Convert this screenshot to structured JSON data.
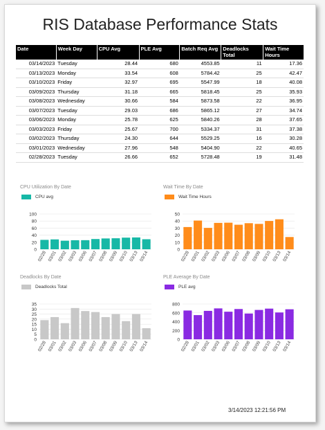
{
  "title": "RIS Database Performance Stats",
  "table": {
    "headers": [
      "Date",
      "Week Day",
      "CPU Avg",
      "PLE Avg",
      "Batch Req Avg",
      "Deadlocks Total",
      "Wait Time Hours"
    ],
    "rows": [
      [
        "03/14/2023",
        "Tuesday",
        "28.44",
        "680",
        "4553.85",
        "11",
        "17.36"
      ],
      [
        "03/13/2023",
        "Monday",
        "33.54",
        "608",
        "5784.42",
        "25",
        "42.47"
      ],
      [
        "03/10/2023",
        "Friday",
        "32.97",
        "695",
        "5547.99",
        "18",
        "40.08"
      ],
      [
        "03/09/2023",
        "Thursday",
        "31.18",
        "665",
        "5818.45",
        "25",
        "35.93"
      ],
      [
        "03/08/2023",
        "Wednesday",
        "30.66",
        "584",
        "5873.58",
        "22",
        "36.95"
      ],
      [
        "03/07/2023",
        "Tuesday",
        "29.03",
        "686",
        "5865.12",
        "27",
        "34.74"
      ],
      [
        "03/06/2023",
        "Monday",
        "25.78",
        "625",
        "5840.26",
        "28",
        "37.65"
      ],
      [
        "03/03/2023",
        "Friday",
        "25.67",
        "700",
        "5334.37",
        "31",
        "37.38"
      ],
      [
        "03/02/2023",
        "Thursday",
        "24.30",
        "644",
        "5529.25",
        "16",
        "30.28"
      ],
      [
        "03/01/2023",
        "Wednesday",
        "27.96",
        "548",
        "5404.90",
        "22",
        "40.65"
      ],
      [
        "02/28/2023",
        "Tuesday",
        "26.66",
        "652",
        "5728.48",
        "19",
        "31.48"
      ]
    ]
  },
  "chart_data": [
    {
      "type": "bar",
      "title": "CPU Utilization By Date",
      "series": [
        {
          "name": "CPU avg",
          "values": [
            26.66,
            27.96,
            24.3,
            25.67,
            25.78,
            29.03,
            30.66,
            31.18,
            32.97,
            33.54,
            28.44
          ]
        }
      ],
      "categories": [
        "02/28",
        "03/01",
        "03/02",
        "03/03",
        "03/06",
        "03/07",
        "03/08",
        "03/09",
        "03/10",
        "03/13",
        "03/14"
      ],
      "yticks": [
        0,
        20,
        40,
        60,
        80,
        100
      ],
      "ylim": [
        0,
        100
      ],
      "color": "#17b8a6",
      "legend": "top-left"
    },
    {
      "type": "bar",
      "title": "Wait Time By Date",
      "series": [
        {
          "name": "Wait Time Hours",
          "values": [
            31.48,
            40.65,
            30.28,
            37.38,
            37.65,
            34.74,
            36.95,
            35.93,
            40.08,
            42.47,
            17.36
          ]
        }
      ],
      "categories": [
        "02/28",
        "03/01",
        "03/02",
        "03/03",
        "03/06",
        "03/07",
        "03/08",
        "03/09",
        "03/10",
        "03/13",
        "03/14"
      ],
      "yticks": [
        0,
        10,
        20,
        30,
        40,
        50
      ],
      "ylim": [
        0,
        50
      ],
      "color": "#ff8c1a",
      "legend": "top-left"
    },
    {
      "type": "bar",
      "title": "Deadlocks By Date",
      "series": [
        {
          "name": "Deadlocks Total",
          "values": [
            19,
            22,
            16,
            31,
            28,
            27,
            22,
            25,
            18,
            25,
            11
          ]
        }
      ],
      "categories": [
        "02/28",
        "03/01",
        "03/02",
        "03/03",
        "03/06",
        "03/07",
        "03/08",
        "03/09",
        "03/10",
        "03/13",
        "03/14"
      ],
      "yticks": [
        0,
        5,
        10,
        15,
        20,
        25,
        30,
        35
      ],
      "ylim": [
        0,
        35
      ],
      "color": "#c8c8c8",
      "legend": "top-left"
    },
    {
      "type": "bar",
      "title": "PLE Average By Date",
      "series": [
        {
          "name": "PLE avg",
          "values": [
            652,
            548,
            644,
            700,
            625,
            686,
            584,
            665,
            695,
            608,
            680
          ]
        }
      ],
      "categories": [
        "02/28",
        "03/01",
        "03/02",
        "03/03",
        "03/06",
        "03/07",
        "03/08",
        "03/09",
        "03/10",
        "03/13",
        "03/14"
      ],
      "yticks": [
        0,
        200,
        400,
        600,
        800
      ],
      "ylim": [
        0,
        800
      ],
      "color": "#8a2be2",
      "legend": "top-left"
    }
  ],
  "timestamp": "3/14/2023 12:21:56 PM"
}
